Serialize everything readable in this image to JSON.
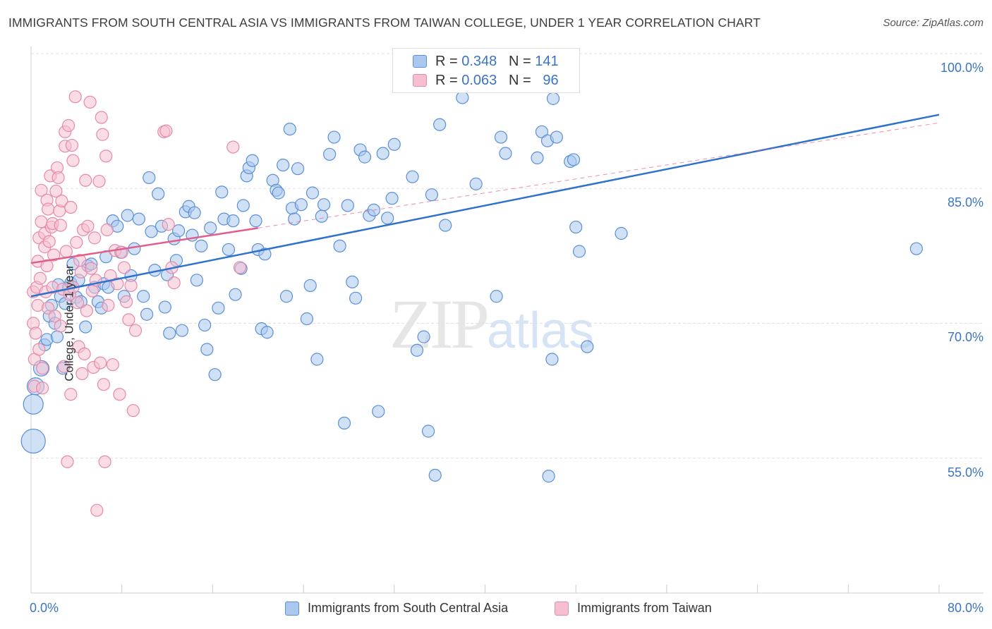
{
  "title": "IMMIGRANTS FROM SOUTH CENTRAL ASIA VS IMMIGRANTS FROM TAIWAN COLLEGE, UNDER 1 YEAR CORRELATION CHART",
  "source": "Source: ZipAtlas.com",
  "watermark": {
    "zip": "ZIP",
    "atlas": "atlas"
  },
  "colors": {
    "blue_fill": "#aac8ee",
    "blue_stroke": "#5b8fd6",
    "blue_line": "#2f72cc",
    "pink_fill": "#f5bfd0",
    "pink_stroke": "#e58aa8",
    "pink_line": "#e05f8a",
    "grid": "#e2e2e2",
    "axis_text": "#3a74c6"
  },
  "legend": {
    "rows": [
      {
        "r_label": "R =",
        "r_value": "0.348",
        "n_label": "N =",
        "n_value": "141",
        "color": "#aac8ee",
        "stroke": "#5b8fd6"
      },
      {
        "r_label": "R =",
        "r_value": "0.063",
        "n_label": "N =",
        "n_value": "96",
        "color": "#f5bfd0",
        "stroke": "#e58aa8"
      }
    ]
  },
  "chart_data": {
    "type": "scatter",
    "title": "IMMIGRANTS FROM SOUTH CENTRAL ASIA VS IMMIGRANTS FROM TAIWAN COLLEGE, UNDER 1 YEAR CORRELATION CHART",
    "xlabel": "",
    "ylabel": "College, Under 1 year",
    "xlim": [
      0,
      80
    ],
    "ylim": [
      40,
      100
    ],
    "x_tick_labels": [
      "0.0%",
      "80.0%"
    ],
    "y_tick_labels": [
      "55.0%",
      "70.0%",
      "85.0%",
      "100.0%"
    ],
    "y_ticks": [
      55,
      70,
      85,
      100
    ],
    "grid": true,
    "legend_position": "top-center",
    "series": [
      {
        "name": "Immigrants from South Central Asia",
        "color": "#5b8fd6",
        "trend": {
          "x": [
            0,
            80
          ],
          "y": [
            73.0,
            93.2
          ],
          "style": "solid"
        },
        "points": [
          [
            0.2,
            56.9
          ],
          [
            0.2,
            61.0
          ],
          [
            0.4,
            63.0
          ],
          [
            0.9,
            65.0
          ],
          [
            1.2,
            67.6
          ],
          [
            1.4,
            68.2
          ],
          [
            1.6,
            70.8
          ],
          [
            1.8,
            72.0
          ],
          [
            2.1,
            70.0
          ],
          [
            2.3,
            68.5
          ],
          [
            2.4,
            74.3
          ],
          [
            2.6,
            73.0
          ],
          [
            2.8,
            65.0
          ],
          [
            3.0,
            72.2
          ],
          [
            3.3,
            74.0
          ],
          [
            3.5,
            74.5
          ],
          [
            3.7,
            76.6
          ],
          [
            4.0,
            72.9
          ],
          [
            4.2,
            74.8
          ],
          [
            4.4,
            72.4
          ],
          [
            4.8,
            69.6
          ],
          [
            5.0,
            76.4
          ],
          [
            5.3,
            76.6
          ],
          [
            5.6,
            74.0
          ],
          [
            5.9,
            72.4
          ],
          [
            6.2,
            71.7
          ],
          [
            6.4,
            74.4
          ],
          [
            6.6,
            77.4
          ],
          [
            6.8,
            74.0
          ],
          [
            7.2,
            81.4
          ],
          [
            7.6,
            80.8
          ],
          [
            7.9,
            77.9
          ],
          [
            8.2,
            73.0
          ],
          [
            8.5,
            82.0
          ],
          [
            8.8,
            75.3
          ],
          [
            9.1,
            78.3
          ],
          [
            9.5,
            81.6
          ],
          [
            9.9,
            73.0
          ],
          [
            10.2,
            71.0
          ],
          [
            10.4,
            86.2
          ],
          [
            10.6,
            80.2
          ],
          [
            10.9,
            75.9
          ],
          [
            11.2,
            84.4
          ],
          [
            11.5,
            80.8
          ],
          [
            11.8,
            71.8
          ],
          [
            12.0,
            75.4
          ],
          [
            12.2,
            68.9
          ],
          [
            12.6,
            79.4
          ],
          [
            12.8,
            77.0
          ],
          [
            13.0,
            80.3
          ],
          [
            13.3,
            69.2
          ],
          [
            13.6,
            82.4
          ],
          [
            13.9,
            83.0
          ],
          [
            14.2,
            79.8
          ],
          [
            14.4,
            82.3
          ],
          [
            14.6,
            74.8
          ],
          [
            15.0,
            78.6
          ],
          [
            15.3,
            69.8
          ],
          [
            15.5,
            67.1
          ],
          [
            15.8,
            80.6
          ],
          [
            16.2,
            64.3
          ],
          [
            16.5,
            71.7
          ],
          [
            16.8,
            84.6
          ],
          [
            17.0,
            81.6
          ],
          [
            17.4,
            78.2
          ],
          [
            17.8,
            81.4
          ],
          [
            18.0,
            73.2
          ],
          [
            18.5,
            76.1
          ],
          [
            18.7,
            83.1
          ],
          [
            19.0,
            86.4
          ],
          [
            19.2,
            87.3
          ],
          [
            19.5,
            88.1
          ],
          [
            19.8,
            81.4
          ],
          [
            20.0,
            78.2
          ],
          [
            20.3,
            69.4
          ],
          [
            20.6,
            77.7
          ],
          [
            20.8,
            69.0
          ],
          [
            21.3,
            85.9
          ],
          [
            21.6,
            84.8
          ],
          [
            21.8,
            84.5
          ],
          [
            22.2,
            87.6
          ],
          [
            22.5,
            73.0
          ],
          [
            22.8,
            91.6
          ],
          [
            23.0,
            82.8
          ],
          [
            23.2,
            81.6
          ],
          [
            23.5,
            87.2
          ],
          [
            23.8,
            83.2
          ],
          [
            24.3,
            70.5
          ],
          [
            24.6,
            74.2
          ],
          [
            24.8,
            84.5
          ],
          [
            25.2,
            66.0
          ],
          [
            25.6,
            81.9
          ],
          [
            25.8,
            83.2
          ],
          [
            26.3,
            88.8
          ],
          [
            26.7,
            90.7
          ],
          [
            27.2,
            78.6
          ],
          [
            27.6,
            58.9
          ],
          [
            27.9,
            83.1
          ],
          [
            28.3,
            74.6
          ],
          [
            28.6,
            72.8
          ],
          [
            29.0,
            89.3
          ],
          [
            29.4,
            88.5
          ],
          [
            29.8,
            82.0
          ],
          [
            30.2,
            82.6
          ],
          [
            30.6,
            60.2
          ],
          [
            31.0,
            88.9
          ],
          [
            31.4,
            81.7
          ],
          [
            31.8,
            83.9
          ],
          [
            32.0,
            89.9
          ],
          [
            33.6,
            86.3
          ],
          [
            34.0,
            67.0
          ],
          [
            34.6,
            68.5
          ],
          [
            35.0,
            58.0
          ],
          [
            35.3,
            84.3
          ],
          [
            35.6,
            53.1
          ],
          [
            36.0,
            92.1
          ],
          [
            36.5,
            80.9
          ],
          [
            38.0,
            95.1
          ],
          [
            39.2,
            85.5
          ],
          [
            41.0,
            73.0
          ],
          [
            41.4,
            90.7
          ],
          [
            41.8,
            88.9
          ],
          [
            44.6,
            88.4
          ],
          [
            45.0,
            91.3
          ],
          [
            45.5,
            90.3
          ],
          [
            45.6,
            53.0
          ],
          [
            45.9,
            66.0
          ],
          [
            46.0,
            95.0
          ],
          [
            46.3,
            90.7
          ],
          [
            47.5,
            88.0
          ],
          [
            47.8,
            88.2
          ],
          [
            48.0,
            80.7
          ],
          [
            48.3,
            78.0
          ],
          [
            49.0,
            67.4
          ],
          [
            52.0,
            80.0
          ],
          [
            78.0,
            78.3
          ]
        ]
      },
      {
        "name": "Immigrants from Taiwan",
        "color": "#e58aa8",
        "trend": {
          "x": [
            0,
            20
          ],
          "y": [
            76.7,
            80.6
          ],
          "style": "solid",
          "dashed_extension_to": [
            80,
            92.3
          ]
        },
        "points": [
          [
            0.2,
            70.0
          ],
          [
            0.2,
            73.5
          ],
          [
            0.3,
            66.0
          ],
          [
            0.3,
            63.0
          ],
          [
            0.4,
            68.9
          ],
          [
            0.5,
            74.0
          ],
          [
            0.6,
            72.0
          ],
          [
            0.6,
            76.9
          ],
          [
            0.7,
            79.5
          ],
          [
            0.7,
            67.1
          ],
          [
            0.8,
            75.0
          ],
          [
            0.9,
            81.3
          ],
          [
            0.9,
            84.8
          ],
          [
            1.0,
            65.0
          ],
          [
            1.0,
            62.8
          ],
          [
            1.2,
            78.5
          ],
          [
            1.2,
            80.0
          ],
          [
            1.3,
            73.5
          ],
          [
            1.4,
            76.4
          ],
          [
            1.4,
            83.7
          ],
          [
            1.5,
            71.7
          ],
          [
            1.5,
            82.7
          ],
          [
            1.6,
            79.1
          ],
          [
            1.7,
            86.4
          ],
          [
            1.8,
            80.7
          ],
          [
            1.9,
            81.1
          ],
          [
            1.9,
            74.0
          ],
          [
            2.0,
            77.6
          ],
          [
            2.1,
            70.8
          ],
          [
            2.2,
            84.7
          ],
          [
            2.3,
            87.3
          ],
          [
            2.4,
            86.2
          ],
          [
            2.5,
            82.5
          ],
          [
            2.6,
            80.9
          ],
          [
            2.6,
            69.7
          ],
          [
            2.7,
            83.6
          ],
          [
            2.8,
            73.8
          ],
          [
            2.9,
            65.2
          ],
          [
            3.0,
            89.7
          ],
          [
            3.0,
            91.3
          ],
          [
            3.1,
            78.0
          ],
          [
            3.2,
            54.6
          ],
          [
            3.3,
            92.0
          ],
          [
            3.4,
            73.2
          ],
          [
            3.5,
            62.1
          ],
          [
            3.5,
            82.9
          ],
          [
            3.6,
            89.8
          ],
          [
            3.7,
            88.1
          ],
          [
            3.7,
            74.0
          ],
          [
            3.9,
            95.2
          ],
          [
            4.0,
            79.0
          ],
          [
            4.1,
            72.3
          ],
          [
            4.2,
            67.4
          ],
          [
            4.3,
            77.0
          ],
          [
            4.4,
            75.7
          ],
          [
            4.5,
            64.4
          ],
          [
            4.6,
            80.4
          ],
          [
            4.7,
            66.6
          ],
          [
            4.8,
            85.9
          ],
          [
            4.9,
            71.4
          ],
          [
            5.0,
            80.8
          ],
          [
            5.2,
            94.6
          ],
          [
            5.3,
            76.1
          ],
          [
            5.4,
            73.6
          ],
          [
            5.5,
            65.1
          ],
          [
            5.6,
            79.5
          ],
          [
            5.7,
            74.8
          ],
          [
            5.8,
            49.2
          ],
          [
            6.0,
            85.8
          ],
          [
            6.1,
            65.6
          ],
          [
            6.2,
            92.9
          ],
          [
            6.3,
            91.0
          ],
          [
            6.4,
            63.2
          ],
          [
            6.5,
            54.6
          ],
          [
            6.6,
            88.6
          ],
          [
            6.7,
            80.4
          ],
          [
            6.8,
            72.0
          ],
          [
            7.0,
            75.3
          ],
          [
            7.2,
            65.4
          ],
          [
            7.4,
            78.1
          ],
          [
            7.6,
            74.4
          ],
          [
            7.8,
            62.1
          ],
          [
            8.0,
            77.9
          ],
          [
            8.2,
            76.2
          ],
          [
            8.4,
            72.4
          ],
          [
            8.6,
            70.4
          ],
          [
            8.8,
            74.2
          ],
          [
            9.0,
            60.3
          ],
          [
            9.2,
            69.2
          ],
          [
            11.7,
            91.3
          ],
          [
            11.9,
            91.4
          ],
          [
            12.1,
            81.0
          ],
          [
            12.4,
            76.2
          ],
          [
            12.6,
            74.5
          ],
          [
            17.8,
            89.6
          ],
          [
            18.4,
            76.2
          ]
        ]
      }
    ]
  }
}
